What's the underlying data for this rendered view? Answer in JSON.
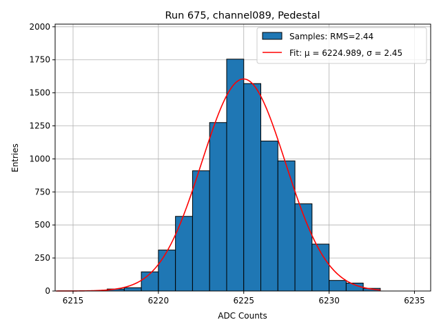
{
  "chart_data": {
    "type": "bar",
    "title": "Run 675, channel089, Pedestal",
    "xlabel": "ADC Counts",
    "ylabel": "Entries",
    "xlim": [
      6213.95,
      6235.95
    ],
    "ylim": [
      0,
      2020
    ],
    "xticks": [
      6215,
      6220,
      6225,
      6230,
      6235
    ],
    "yticks": [
      0,
      250,
      500,
      750,
      1000,
      1250,
      1500,
      1750,
      2000
    ],
    "grid": true,
    "legend_position": "top-right",
    "histogram": {
      "name": "Samples: RMS=2.44",
      "color": "#1f77b4",
      "bin_width": 1,
      "bins": [
        {
          "left": 6217,
          "count": 15
        },
        {
          "left": 6218,
          "count": 25
        },
        {
          "left": 6219,
          "count": 145
        },
        {
          "left": 6220,
          "count": 310
        },
        {
          "left": 6221,
          "count": 565
        },
        {
          "left": 6222,
          "count": 910
        },
        {
          "left": 6223,
          "count": 1275
        },
        {
          "left": 6224,
          "count": 1755
        },
        {
          "left": 6225,
          "count": 1570
        },
        {
          "left": 6226,
          "count": 1135
        },
        {
          "left": 6227,
          "count": 985
        },
        {
          "left": 6228,
          "count": 660
        },
        {
          "left": 6229,
          "count": 355
        },
        {
          "left": 6230,
          "count": 80
        },
        {
          "left": 6231,
          "count": 60
        },
        {
          "left": 6232,
          "count": 20
        }
      ]
    },
    "fit": {
      "name": "Fit: μ = 6224.989, σ = 2.45",
      "color": "#ff0000",
      "mu": 6224.989,
      "sigma": 2.45,
      "amplitude": 1605,
      "x_range": [
        6214,
        6233
      ]
    }
  }
}
